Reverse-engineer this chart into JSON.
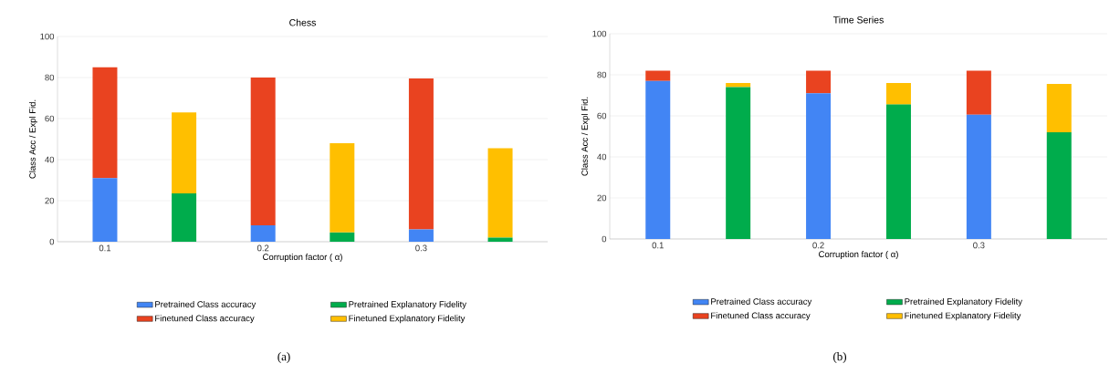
{
  "chart_data": [
    {
      "type": "bar",
      "title": "Chess",
      "xlabel": "Corruption factor ( α)",
      "ylabel": "Class Acc / Expl Fid.",
      "categories": [
        "0.1",
        null,
        "0.2",
        null,
        "0.3",
        null
      ],
      "stacked": true,
      "ylim": [
        0,
        100
      ],
      "yticks": [
        0,
        20,
        40,
        60,
        80,
        100
      ],
      "grid": "y",
      "legend": "bottom",
      "annotations": [
        "(a)"
      ],
      "series": [
        {
          "name": "Pretrained Class accuracy",
          "color": "#4285f4",
          "values": [
            31,
            null,
            8,
            null,
            6,
            null
          ]
        },
        {
          "name": "Finetuned Class accuracy",
          "color": "#e94320",
          "values": [
            54,
            null,
            72,
            null,
            73.5,
            null
          ]
        },
        {
          "name": "Pretrained Explanatory Fidelity",
          "color": "#00ac4c",
          "values": [
            null,
            23.5,
            null,
            4.5,
            null,
            2
          ]
        },
        {
          "name": "Finetuned Explanatory Fidelity",
          "color": "#ffbf00",
          "values": [
            null,
            39.5,
            null,
            43.5,
            null,
            43.5
          ]
        }
      ]
    },
    {
      "type": "bar",
      "title": "Time Series",
      "xlabel": "Corruption factor ( α)",
      "ylabel": "Class Acc / Expl Fid.",
      "categories": [
        "0.1",
        null,
        "0.2",
        null,
        "0.3",
        null
      ],
      "stacked": true,
      "ylim": [
        0,
        100
      ],
      "yticks": [
        0,
        20,
        40,
        60,
        80,
        100
      ],
      "grid": "y",
      "legend": "bottom",
      "annotations": [
        "(b)"
      ],
      "series": [
        {
          "name": "Pretrained Class accuracy",
          "color": "#4285f4",
          "values": [
            77,
            null,
            71,
            null,
            60.5,
            null
          ]
        },
        {
          "name": "Finetuned Class accuracy",
          "color": "#e94320",
          "values": [
            5,
            null,
            11,
            null,
            21.5,
            null
          ]
        },
        {
          "name": "Pretrained Explanatory Fidelity",
          "color": "#00ac4c",
          "values": [
            null,
            74,
            null,
            65.5,
            null,
            52
          ]
        },
        {
          "name": "Finetuned Explanatory Fidelity",
          "color": "#ffbf00",
          "values": [
            null,
            2,
            null,
            10.5,
            null,
            23.5
          ]
        }
      ]
    }
  ]
}
